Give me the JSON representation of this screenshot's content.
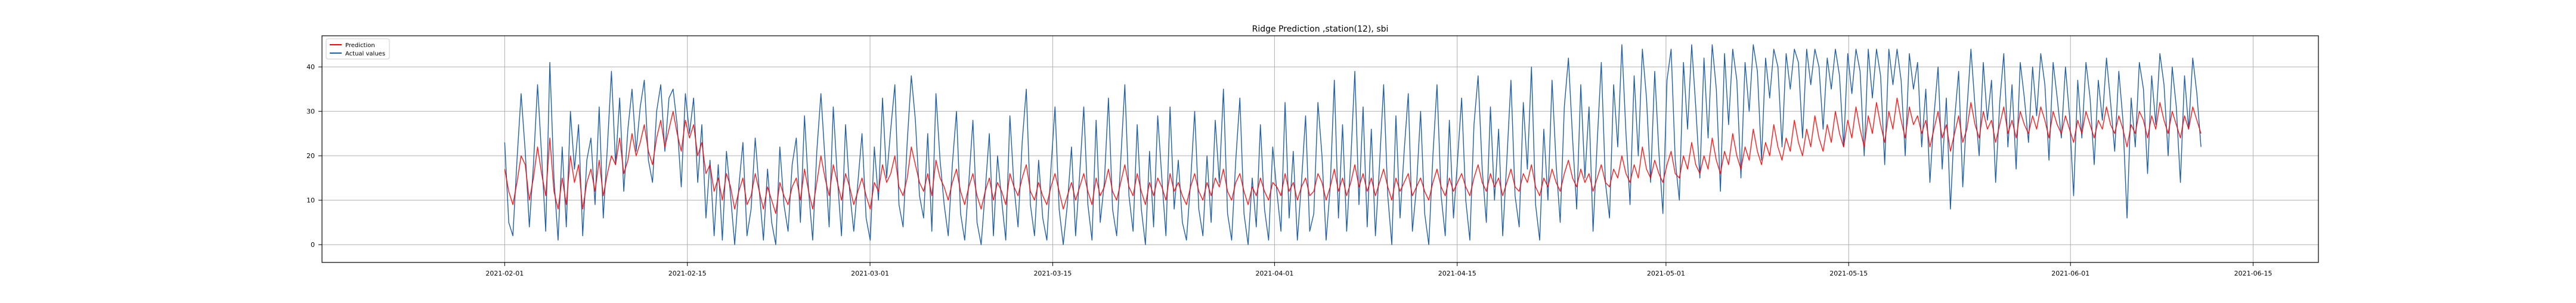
{
  "chart_data": {
    "type": "line",
    "title": "Ridge Prediction ,station(12), sbi",
    "xlabel": "",
    "ylabel": "",
    "x_range": [
      "2021-01-18",
      "2021-06-20"
    ],
    "ylim": [
      -4,
      47
    ],
    "x_ticks": [
      "2021-02-01",
      "2021-02-15",
      "2021-03-01",
      "2021-03-15",
      "2021-04-01",
      "2021-04-15",
      "2021-05-01",
      "2021-05-15",
      "2021-06-01",
      "2021-06-15"
    ],
    "y_ticks": [
      0,
      10,
      20,
      30,
      40
    ],
    "grid": true,
    "legend": "top-left",
    "data_start": "2021-02-01",
    "data_end": "2021-06-11",
    "series": [
      {
        "name": "Prediction",
        "color": "#ff0000",
        "values": [
          17,
          12,
          9,
          14,
          20,
          18,
          10,
          15,
          22,
          16,
          11,
          24,
          12,
          8,
          15,
          9,
          20,
          14,
          18,
          8,
          14,
          17,
          12,
          19,
          11,
          16,
          20,
          18,
          24,
          16,
          19,
          25,
          20,
          23,
          27,
          21,
          18,
          24,
          28,
          22,
          26,
          30,
          25,
          21,
          28,
          24,
          27,
          20,
          23,
          16,
          18,
          12,
          15,
          10,
          16,
          13,
          8,
          12,
          15,
          9,
          11,
          16,
          12,
          8,
          13,
          10,
          7,
          14,
          11,
          9,
          13,
          15,
          10,
          17,
          12,
          8,
          14,
          20,
          15,
          11,
          18,
          14,
          10,
          16,
          13,
          9,
          12,
          15,
          11,
          8,
          14,
          12,
          18,
          14,
          16,
          20,
          13,
          11,
          15,
          22,
          18,
          14,
          12,
          16,
          11,
          19,
          15,
          13,
          10,
          14,
          17,
          12,
          9,
          13,
          16,
          11,
          8,
          12,
          15,
          10,
          14,
          12,
          9,
          16,
          13,
          11,
          15,
          18,
          12,
          10,
          14,
          11,
          9,
          13,
          16,
          12,
          8,
          11,
          14,
          10,
          13,
          16,
          12,
          9,
          15,
          11,
          13,
          17,
          12,
          10,
          14,
          18,
          13,
          11,
          16,
          12,
          9,
          14,
          11,
          15,
          13,
          10,
          16,
          12,
          14,
          11,
          9,
          13,
          16,
          12,
          10,
          14,
          11,
          15,
          13,
          17,
          12,
          10,
          14,
          16,
          12,
          9,
          13,
          11,
          15,
          12,
          10,
          14,
          13,
          11,
          16,
          12,
          14,
          10,
          13,
          15,
          11,
          12,
          16,
          14,
          10,
          13,
          17,
          12,
          15,
          11,
          14,
          18,
          13,
          16,
          12,
          15,
          11,
          14,
          17,
          13,
          10,
          15,
          12,
          14,
          16,
          11,
          13,
          15,
          12,
          10,
          14,
          17,
          13,
          11,
          15,
          12,
          14,
          16,
          13,
          11,
          15,
          18,
          14,
          12,
          16,
          13,
          15,
          11,
          14,
          17,
          13,
          12,
          16,
          14,
          18,
          13,
          11,
          15,
          13,
          17,
          14,
          12,
          16,
          19,
          15,
          13,
          17,
          14,
          16,
          12,
          15,
          18,
          14,
          13,
          17,
          15,
          20,
          16,
          14,
          18,
          15,
          22,
          17,
          15,
          19,
          16,
          14,
          18,
          21,
          16,
          15,
          20,
          17,
          23,
          18,
          16,
          20,
          17,
          24,
          19,
          16,
          21,
          18,
          25,
          20,
          17,
          22,
          19,
          26,
          21,
          18,
          23,
          20,
          27,
          22,
          19,
          24,
          21,
          28,
          23,
          20,
          26,
          22,
          29,
          24,
          21,
          27,
          23,
          30,
          25,
          22,
          28,
          24,
          31,
          26,
          22,
          29,
          25,
          32,
          27,
          23,
          30,
          26,
          33,
          28,
          24,
          31,
          27,
          29,
          25,
          28,
          22,
          26,
          30,
          24,
          27,
          21,
          25,
          29,
          23,
          26,
          32,
          27,
          24,
          30,
          26,
          28,
          23,
          27,
          31,
          25,
          28,
          24,
          30,
          27,
          25,
          29,
          26,
          31,
          28,
          24,
          30,
          27,
          25,
          29,
          26,
          23,
          28,
          25,
          30,
          27,
          24,
          28,
          26,
          31,
          27,
          25,
          29,
          26,
          22,
          27,
          25,
          30,
          28,
          24,
          29,
          26,
          32,
          28,
          25,
          30,
          27,
          24,
          29,
          26,
          31,
          28,
          25
        ]
      },
      {
        "name": "Actual values",
        "color": "#1f5fa6",
        "values": [
          23,
          5,
          2,
          19,
          34,
          21,
          4,
          18,
          36,
          20,
          3,
          41,
          15,
          1,
          22,
          4,
          30,
          17,
          27,
          2,
          19,
          24,
          9,
          31,
          6,
          22,
          39,
          18,
          33,
          12,
          26,
          35,
          21,
          31,
          37,
          19,
          14,
          30,
          36,
          21,
          33,
          35,
          27,
          13,
          34,
          25,
          33,
          14,
          27,
          6,
          19,
          2,
          18,
          1,
          21,
          11,
          0,
          13,
          23,
          2,
          8,
          24,
          12,
          1,
          17,
          5,
          0,
          22,
          9,
          3,
          18,
          24,
          5,
          29,
          12,
          1,
          21,
          34,
          19,
          4,
          31,
          15,
          2,
          27,
          12,
          3,
          14,
          25,
          6,
          1,
          22,
          10,
          33,
          15,
          26,
          36,
          9,
          4,
          23,
          38,
          28,
          11,
          6,
          25,
          3,
          34,
          19,
          9,
          2,
          18,
          30,
          7,
          1,
          14,
          28,
          5,
          0,
          12,
          25,
          2,
          20,
          10,
          1,
          29,
          13,
          4,
          23,
          35,
          9,
          2,
          19,
          6,
          1,
          17,
          31,
          8,
          0,
          9,
          22,
          2,
          16,
          31,
          9,
          1,
          28,
          5,
          14,
          33,
          8,
          2,
          19,
          36,
          11,
          3,
          27,
          8,
          0,
          21,
          4,
          29,
          15,
          2,
          31,
          8,
          19,
          5,
          1,
          14,
          30,
          8,
          2,
          20,
          5,
          28,
          14,
          35,
          7,
          1,
          19,
          33,
          7,
          0,
          15,
          4,
          27,
          8,
          1,
          22,
          12,
          3,
          32,
          6,
          21,
          1,
          14,
          29,
          3,
          7,
          32,
          20,
          1,
          13,
          37,
          6,
          27,
          3,
          19,
          39,
          9,
          31,
          4,
          26,
          2,
          18,
          36,
          11,
          0,
          29,
          6,
          21,
          34,
          3,
          13,
          30,
          7,
          0,
          20,
          36,
          11,
          2,
          28,
          6,
          19,
          33,
          10,
          1,
          27,
          38,
          17,
          5,
          31,
          10,
          26,
          2,
          19,
          37,
          11,
          4,
          32,
          17,
          40,
          9,
          1,
          26,
          10,
          37,
          18,
          5,
          31,
          42,
          24,
          8,
          36,
          15,
          31,
          3,
          23,
          41,
          14,
          6,
          36,
          22,
          45,
          25,
          9,
          38,
          20,
          44,
          33,
          14,
          39,
          21,
          7,
          37,
          44,
          19,
          10,
          41,
          26,
          45,
          31,
          15,
          42,
          24,
          45,
          35,
          12,
          43,
          27,
          44,
          37,
          15,
          41,
          30,
          45,
          39,
          19,
          42,
          33,
          44,
          40,
          22,
          43,
          35,
          44,
          41,
          24,
          44,
          36,
          44,
          40,
          26,
          42,
          35,
          44,
          38,
          22,
          43,
          34,
          44,
          39,
          20,
          44,
          33,
          44,
          38,
          18,
          44,
          36,
          44,
          37,
          20,
          43,
          35,
          41,
          22,
          35,
          14,
          29,
          40,
          17,
          33,
          8,
          28,
          39,
          13,
          30,
          44,
          31,
          20,
          41,
          28,
          37,
          14,
          32,
          43,
          22,
          36,
          17,
          41,
          33,
          23,
          40,
          29,
          43,
          36,
          19,
          41,
          33,
          24,
          40,
          29,
          11,
          37,
          24,
          41,
          33,
          18,
          37,
          28,
          42,
          32,
          21,
          39,
          28,
          6,
          33,
          22,
          41,
          35,
          16,
          38,
          27,
          43,
          36,
          20,
          40,
          31,
          14,
          38,
          26,
          42,
          34,
          22
        ]
      }
    ]
  }
}
